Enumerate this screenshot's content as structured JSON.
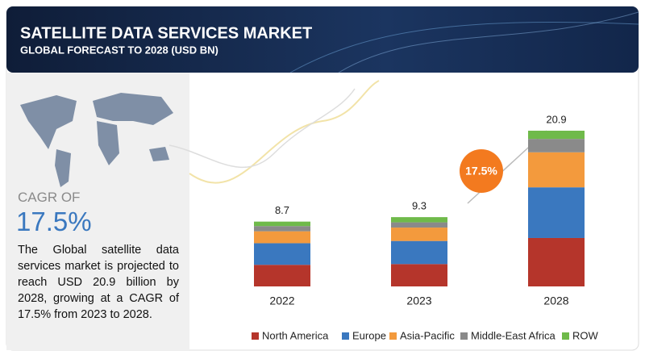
{
  "chart_data": {
    "type": "stacked-bar",
    "title": "SATELLITE DATA SERVICES MARKET",
    "subtitle": "GLOBAL FORECAST TO 2028 (USD BN)",
    "categories": [
      "2022",
      "2023",
      "2028"
    ],
    "totals": [
      8.7,
      9.3,
      20.9
    ],
    "series": [
      {
        "name": "North America",
        "color": "#b5352b",
        "values": [
          2.9,
          3.0,
          6.5
        ]
      },
      {
        "name": "Europe",
        "color": "#3a78bf",
        "values": [
          2.9,
          3.1,
          6.8
        ]
      },
      {
        "name": "Asia-Pacific",
        "color": "#f39a3d",
        "values": [
          1.6,
          1.8,
          4.7
        ]
      },
      {
        "name": "Middle-East Africa",
        "color": "#8a8a8a",
        "values": [
          0.7,
          0.7,
          1.8
        ]
      },
      {
        "name": "ROW",
        "color": "#6fba4a",
        "values": [
          0.6,
          0.7,
          1.1
        ]
      }
    ],
    "ylim": [
      0,
      21
    ],
    "legend": "bottom",
    "annotations": {
      "cagr_label": "CAGR OF",
      "cagr_value": "17.5%",
      "description": "The Global satellite data services market is projected to reach USD 20.9 billion by 2028, growing at a CAGR of 17.5% from 2023 to 2028.",
      "bubble": "17.5%"
    }
  }
}
